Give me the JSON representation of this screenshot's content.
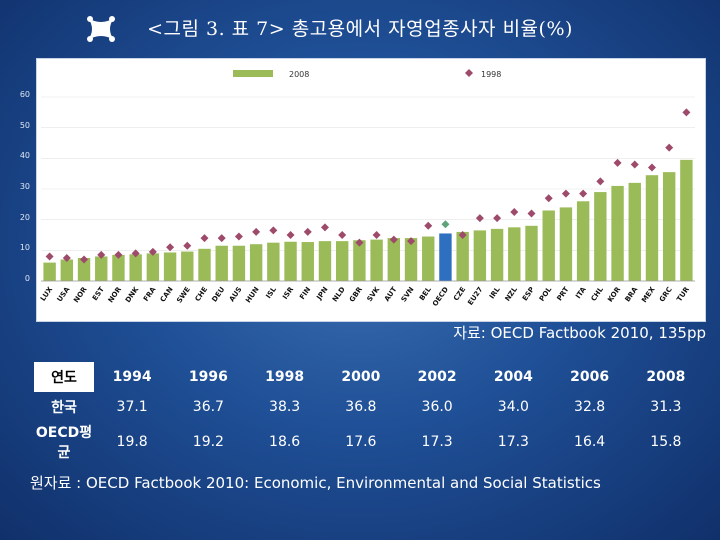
{
  "title": "<그림 3. 표 7> 총고용에서 자영업종사자 비율(%)",
  "chart_data": {
    "type": "bar",
    "title": "",
    "legend": [
      {
        "name": "2008",
        "marker": "bar",
        "color": "#9bbb59"
      },
      {
        "name": "1998",
        "marker": "diamond",
        "color": "#9e4a6a"
      }
    ],
    "ylim": [
      0,
      60
    ],
    "yticks": [
      "0",
      "10",
      "20",
      "30",
      "40",
      "50",
      "60"
    ],
    "categories": [
      "LUX",
      "USA",
      "NOR",
      "EST",
      "NOR",
      "DNK",
      "FRA",
      "CAN",
      "SWE",
      "CHE",
      "DEU",
      "AUS",
      "HUN",
      "ISL",
      "ISR",
      "FIN",
      "JPN",
      "NLD",
      "GBR",
      "SVK",
      "AUT",
      "SVN",
      "BEL",
      "OECD",
      "CZE",
      "EU27",
      "IRL",
      "NZL",
      "ESP",
      "POL",
      "PRT",
      "ITA",
      "CHL",
      "KOR",
      "BRA",
      "MEX",
      "GRC",
      "TUR"
    ],
    "series": [
      {
        "name": "2008",
        "values": [
          6,
          7,
          7.5,
          8,
          8.5,
          8.7,
          9,
          9.3,
          9.6,
          10.5,
          11.5,
          11.5,
          12,
          12.5,
          12.8,
          12.7,
          13,
          13,
          13.3,
          13.5,
          14,
          14,
          14.5,
          15.5,
          16,
          16.5,
          17,
          17.5,
          18,
          23,
          24,
          26,
          29,
          31,
          32,
          34.5,
          35.5,
          39.5
        ]
      },
      {
        "name": "1998",
        "values": [
          8,
          7.5,
          7,
          8.5,
          8.5,
          9,
          9.5,
          11,
          11.5,
          14,
          14,
          14.5,
          16,
          16.5,
          15,
          16,
          17.5,
          15,
          12.5,
          15,
          13.5,
          13,
          18,
          18.5,
          15,
          20.5,
          20.5,
          22.5,
          22,
          27,
          28.5,
          28.5,
          32.5,
          38.5,
          38,
          37,
          43.5,
          55
        ]
      }
    ],
    "highlight_category": "OECD",
    "highlight_colors": {
      "bar": "#2f6fbf",
      "marker": "#5fa37a"
    }
  },
  "source_note": "자료: OECD Factbook 2010, 135pp",
  "table": {
    "header_label": "연도",
    "years": [
      "1994",
      "1996",
      "1998",
      "2000",
      "2002",
      "2004",
      "2006",
      "2008"
    ],
    "rows": [
      {
        "label": "한국",
        "values": [
          "37.1",
          "36.7",
          "38.3",
          "36.8",
          "36.0",
          "34.0",
          "32.8",
          "31.3"
        ]
      },
      {
        "label": "OECD평균",
        "values": [
          "19.8",
          "19.2",
          "18.6",
          "17.6",
          "17.3",
          "17.3",
          "16.4",
          "15.8"
        ]
      }
    ]
  },
  "bottom_note": "원자료 : OECD Factbook 2010: Economic, Environmental and Social Statistics"
}
